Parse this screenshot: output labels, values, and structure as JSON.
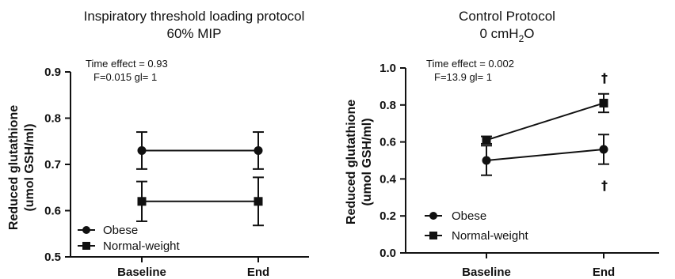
{
  "chart_data": [
    {
      "type": "line",
      "title_line1": "Inspiratory threshold loading protocol",
      "title_line2": "60% MIP",
      "ylabel_line1": "Reduced glutathione",
      "ylabel_line2": "(umol GSH/ml)",
      "categories": [
        "Baseline",
        "End"
      ],
      "ylim": [
        0.5,
        0.9
      ],
      "yticks": [
        "0.5",
        "0.6",
        "0.7",
        "0.8",
        "0.9"
      ],
      "stats_line1": "Time  effect = 0.93",
      "stats_line2": "F=0.015   gl= 1",
      "legend_position": "bottom-left",
      "series": [
        {
          "name": "Obese",
          "marker": "circle",
          "values": [
            0.73,
            0.73
          ],
          "errors": [
            0.04,
            0.04
          ]
        },
        {
          "name": "Normal-weight",
          "marker": "square",
          "values": [
            0.62,
            0.62
          ],
          "errors": [
            0.043,
            0.052
          ]
        }
      ],
      "annotations": []
    },
    {
      "type": "line",
      "title_line1": "Control Protocol",
      "title_line2_main": "0 cmH",
      "title_line2_sub": "2",
      "title_line2_end": "O",
      "ylabel_line1": "Reduced glutathione",
      "ylabel_line2": "(umol GSH/ml)",
      "categories": [
        "Baseline",
        "End"
      ],
      "ylim": [
        0.0,
        1.0
      ],
      "yticks": [
        "0.0",
        "0.2",
        "0.4",
        "0.6",
        "0.8",
        "1.0"
      ],
      "stats_line1": "Time  effect = 0.002",
      "stats_line2": "F=13.9   gl= 1",
      "legend_position": "bottom-left",
      "series": [
        {
          "name": "Obese",
          "marker": "circle",
          "values": [
            0.5,
            0.56
          ],
          "errors": [
            0.08,
            0.08
          ]
        },
        {
          "name": "Normal-weight",
          "marker": "square",
          "values": [
            0.61,
            0.81
          ],
          "errors": [
            0.02,
            0.05
          ]
        }
      ],
      "annotations": [
        "†",
        "†"
      ]
    }
  ]
}
